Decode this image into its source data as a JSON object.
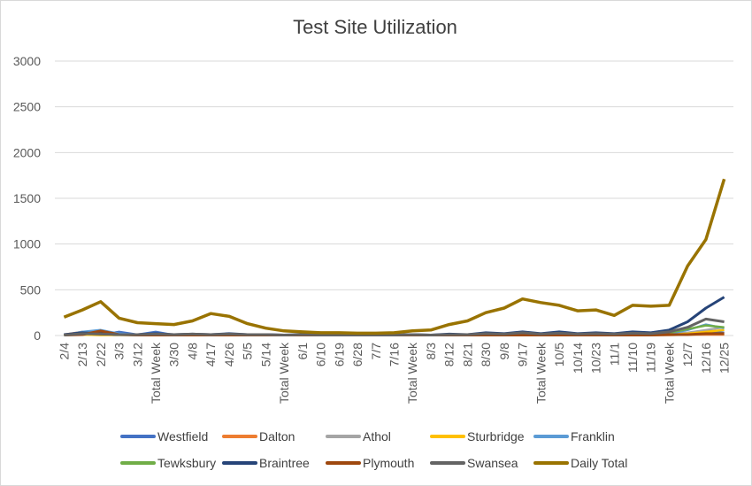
{
  "chart_data": {
    "type": "line",
    "title": "Test Site Utilization",
    "xlabel": "",
    "ylabel": "",
    "ylim": [
      0,
      3000
    ],
    "yticks": [
      "0",
      "500",
      "1000",
      "1500",
      "2000",
      "2500",
      "3000"
    ],
    "grid": "horizontal",
    "legend_position": "bottom",
    "x_labels": [
      "2/4",
      "2/13",
      "2/22",
      "3/3",
      "3/12",
      "Total Week",
      "3/30",
      "4/8",
      "4/17",
      "4/26",
      "5/5",
      "5/14",
      "Total Week",
      "6/1",
      "6/10",
      "6/19",
      "6/28",
      "7/7",
      "7/16",
      "Total Week",
      "8/3",
      "8/12",
      "8/21",
      "8/30",
      "9/8",
      "9/17",
      "Total Week",
      "10/5",
      "10/14",
      "10/23",
      "11/1",
      "11/10",
      "11/19",
      "Total Week",
      "12/7",
      "12/16",
      "12/25"
    ],
    "series": [
      {
        "name": "Westfield",
        "color": "#4472C4",
        "width": 2.5,
        "values": [
          5,
          30,
          8,
          40,
          10,
          40,
          5,
          10,
          5,
          15,
          5,
          10,
          5,
          10,
          5,
          5,
          5,
          5,
          5,
          10,
          5,
          10,
          5,
          15,
          10,
          20,
          10,
          15,
          10,
          15,
          10,
          20,
          10,
          30,
          20,
          50,
          30
        ]
      },
      {
        "name": "Dalton",
        "color": "#ED7D31",
        "width": 2.5,
        "values": [
          10,
          40,
          20,
          10,
          5,
          5,
          5,
          5,
          5,
          5,
          5,
          5,
          5,
          5,
          5,
          5,
          5,
          5,
          5,
          5,
          5,
          5,
          5,
          5,
          5,
          5,
          5,
          5,
          5,
          5,
          5,
          5,
          5,
          5,
          10,
          10,
          10
        ]
      },
      {
        "name": "Athol",
        "color": "#A5A5A5",
        "width": 2.5,
        "values": [
          5,
          10,
          5,
          10,
          5,
          10,
          5,
          10,
          5,
          10,
          5,
          5,
          5,
          5,
          5,
          5,
          5,
          5,
          5,
          5,
          5,
          5,
          5,
          10,
          5,
          10,
          5,
          10,
          5,
          10,
          5,
          10,
          10,
          20,
          30,
          60,
          90
        ]
      },
      {
        "name": "Sturbridge",
        "color": "#FFC000",
        "width": 2.5,
        "values": [
          5,
          10,
          5,
          5,
          5,
          5,
          5,
          5,
          5,
          5,
          5,
          5,
          5,
          5,
          5,
          5,
          5,
          5,
          5,
          5,
          5,
          5,
          5,
          5,
          5,
          5,
          5,
          5,
          5,
          5,
          5,
          5,
          5,
          10,
          20,
          40,
          60
        ]
      },
      {
        "name": "Franklin",
        "color": "#5B9BD5",
        "width": 2.5,
        "values": [
          5,
          40,
          60,
          20,
          10,
          5,
          5,
          10,
          5,
          10,
          5,
          5,
          5,
          5,
          5,
          5,
          5,
          5,
          5,
          5,
          5,
          5,
          5,
          10,
          5,
          10,
          5,
          10,
          5,
          10,
          5,
          10,
          10,
          20,
          60,
          120,
          80
        ]
      },
      {
        "name": "Tewksbury",
        "color": "#70AD47",
        "width": 2.5,
        "values": [
          5,
          20,
          30,
          10,
          5,
          5,
          5,
          5,
          5,
          5,
          5,
          5,
          5,
          5,
          5,
          5,
          5,
          5,
          5,
          5,
          5,
          5,
          5,
          10,
          5,
          10,
          5,
          10,
          5,
          10,
          5,
          10,
          10,
          30,
          70,
          110,
          90
        ]
      },
      {
        "name": "Braintree",
        "color": "#264478",
        "width": 3,
        "values": [
          10,
          30,
          20,
          10,
          10,
          20,
          10,
          15,
          10,
          20,
          10,
          10,
          5,
          10,
          5,
          5,
          5,
          5,
          5,
          10,
          5,
          15,
          10,
          30,
          20,
          40,
          20,
          40,
          20,
          30,
          20,
          40,
          30,
          60,
          150,
          300,
          420
        ]
      },
      {
        "name": "Plymouth",
        "color": "#9E480E",
        "width": 3,
        "values": [
          5,
          10,
          50,
          10,
          5,
          5,
          5,
          5,
          5,
          5,
          5,
          5,
          5,
          5,
          5,
          5,
          5,
          5,
          5,
          5,
          5,
          5,
          5,
          5,
          5,
          5,
          5,
          5,
          5,
          5,
          5,
          5,
          5,
          10,
          10,
          20,
          20
        ]
      },
      {
        "name": "Swansea",
        "color": "#636363",
        "width": 3,
        "values": [
          5,
          20,
          15,
          10,
          10,
          15,
          10,
          15,
          10,
          15,
          10,
          10,
          5,
          10,
          5,
          5,
          5,
          5,
          5,
          10,
          5,
          10,
          10,
          20,
          15,
          30,
          15,
          25,
          15,
          20,
          15,
          25,
          20,
          40,
          90,
          180,
          150
        ]
      },
      {
        "name": "Daily Total",
        "color": "#997300",
        "width": 3.5,
        "values": [
          200,
          280,
          370,
          190,
          140,
          130,
          120,
          160,
          240,
          210,
          130,
          80,
          50,
          40,
          30,
          30,
          25,
          25,
          30,
          50,
          60,
          120,
          160,
          250,
          300,
          400,
          360,
          330,
          270,
          280,
          220,
          330,
          320,
          330,
          760,
          1050,
          1710
        ]
      }
    ]
  }
}
